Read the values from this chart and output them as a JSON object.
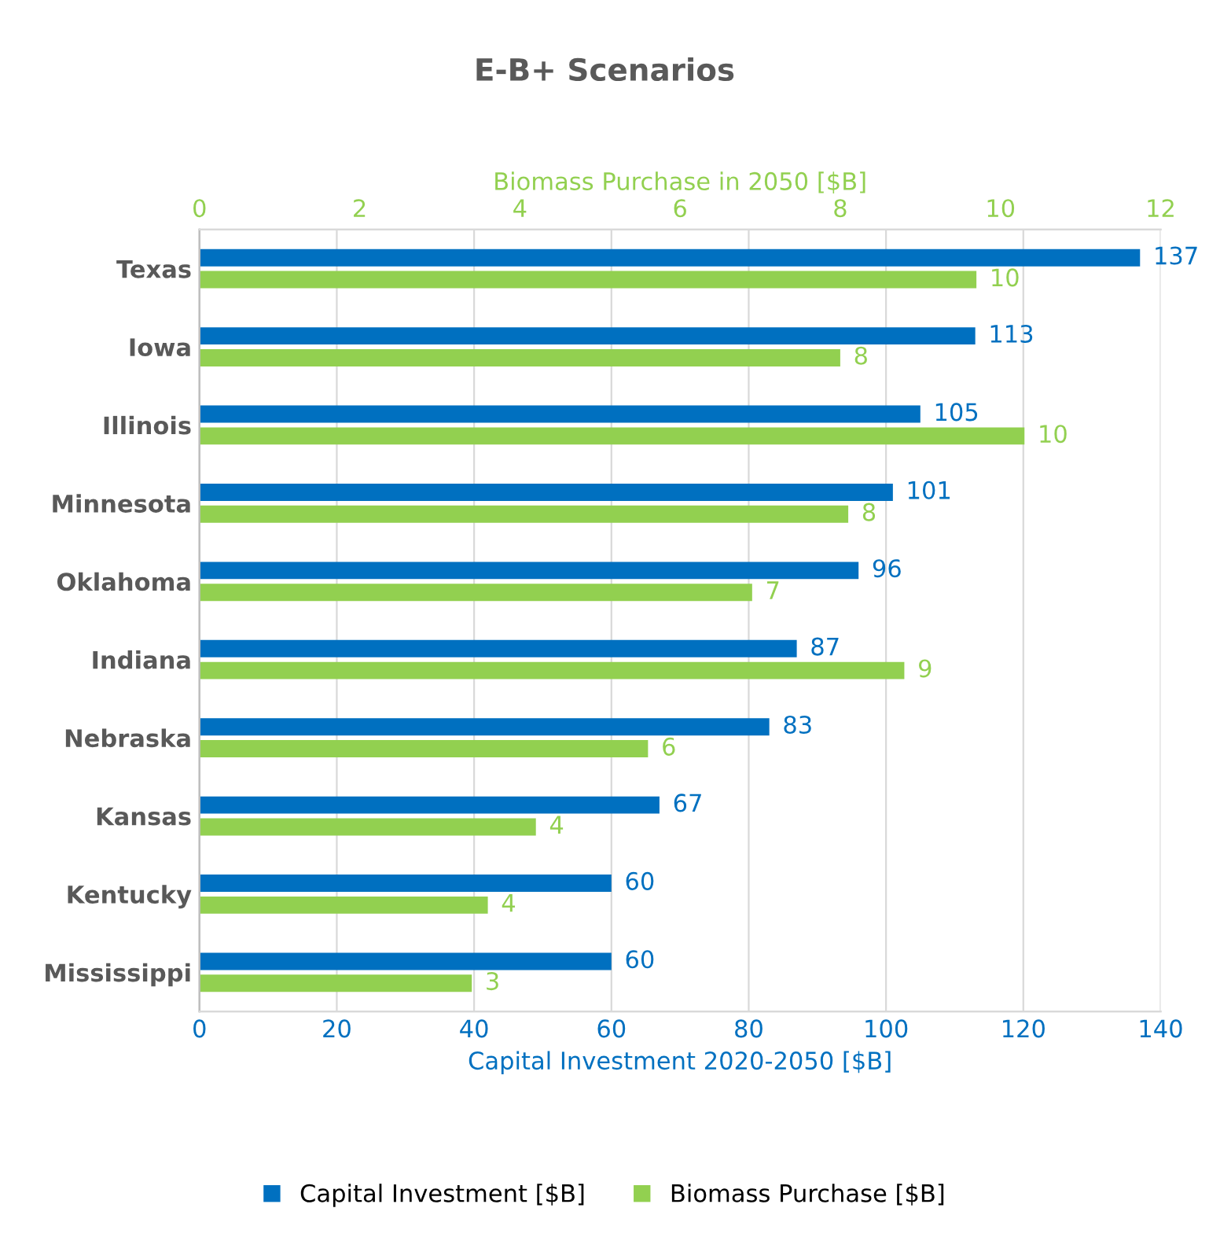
{
  "chart_data": {
    "type": "bar",
    "orientation": "horizontal",
    "title": "E-B+ Scenarios",
    "categories": [
      "Texas",
      "Iowa",
      "Illinois",
      "Minnesota",
      "Oklahoma",
      "Indiana",
      "Nebraska",
      "Kansas",
      "Kentucky",
      "Mississippi"
    ],
    "series": [
      {
        "name": "Capital Investment [$B]",
        "color": "#0070c0",
        "values": [
          137,
          113,
          105,
          101,
          96,
          87,
          83,
          67,
          60,
          60
        ],
        "value_labels": [
          "137",
          "113",
          "105",
          "101",
          "96",
          "87",
          "83",
          "67",
          "60",
          "60"
        ]
      },
      {
        "name": "Biomass Purchase [$B]",
        "color": "#92d050",
        "axis": "x2",
        "values": [
          9.7,
          8.0,
          10.3,
          8.1,
          6.9,
          8.8,
          5.6,
          4.2,
          3.6,
          3.4
        ],
        "value_labels": [
          "10",
          "8",
          "10",
          "8",
          "7",
          "9",
          "6",
          "4",
          "4",
          "3"
        ]
      }
    ],
    "xlabel": "Capital Investment 2020-2050 [$B]",
    "xlim": [
      0,
      140
    ],
    "xticks": [
      0,
      20,
      40,
      60,
      80,
      100,
      120,
      140
    ],
    "x2label": "Biomass Purchase in 2050 [$B]",
    "x2lim": [
      0,
      12
    ],
    "x2ticks": [
      0,
      2,
      4,
      6,
      8,
      10,
      12
    ],
    "grid": "x",
    "legend": "bottom"
  }
}
